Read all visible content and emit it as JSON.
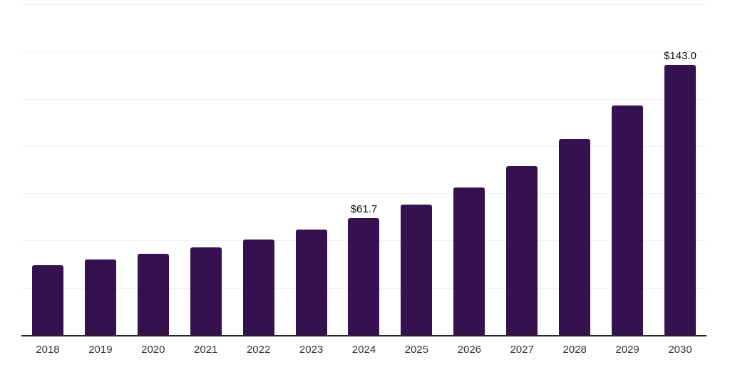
{
  "chart_data": {
    "type": "bar",
    "title": "",
    "xlabel": "",
    "ylabel": "",
    "categories": [
      "2018",
      "2019",
      "2020",
      "2021",
      "2022",
      "2023",
      "2024",
      "2025",
      "2026",
      "2027",
      "2028",
      "2029",
      "2030"
    ],
    "values": [
      37.1,
      40.0,
      43.1,
      46.4,
      50.4,
      55.8,
      61.7,
      69.2,
      78.1,
      89.3,
      103.9,
      121.4,
      143.0
    ],
    "bar_labels": [
      "",
      "",
      "",
      "",
      "",
      "",
      "$61.7",
      "",
      "",
      "",
      "",
      "",
      "$143.0"
    ],
    "ylim": [
      0,
      175
    ],
    "gridline_step": 25,
    "grid": true,
    "legend": "none",
    "colors": {
      "bar_fill": "#36114F",
      "gridline": "#f2f2f2",
      "axis_line": "#262626",
      "tick_label": "#333333",
      "value_label": "#0d0d0d"
    }
  }
}
